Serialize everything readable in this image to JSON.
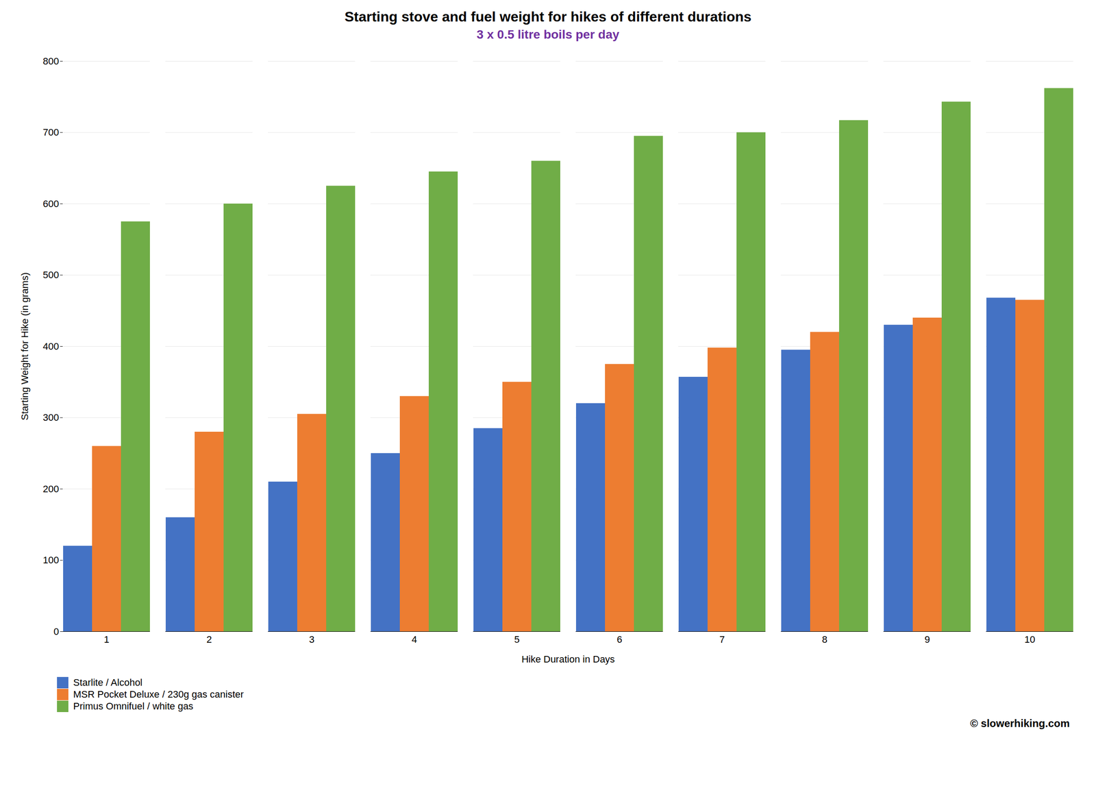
{
  "chart_data": {
    "type": "bar",
    "title": "Starting stove and fuel weight for hikes of different durations",
    "subtitle": "3 x 0.5 litre boils per day",
    "annotations": [
      "© slowerhiking.com"
    ],
    "xlabel": "Hike Duration in Days",
    "ylabel": "Starting Weight for Hike (in grams)",
    "categories": [
      "1",
      "2",
      "3",
      "4",
      "5",
      "6",
      "7",
      "8",
      "9",
      "10"
    ],
    "series": [
      {
        "name": "Starlite / Alcohol",
        "color": "#4472C4",
        "values": [
          120,
          160,
          210,
          250,
          285,
          320,
          357,
          395,
          430,
          468
        ]
      },
      {
        "name": "MSR Pocket Deluxe / 230g gas canister",
        "color": "#ED7D31",
        "values": [
          260,
          280,
          305,
          330,
          350,
          375,
          398,
          420,
          440,
          465
        ]
      },
      {
        "name": "Primus Omnifuel / white gas",
        "color": "#70AD47",
        "values": [
          575,
          600,
          625,
          645,
          660,
          695,
          700,
          717,
          743,
          762
        ]
      }
    ],
    "ylim": [
      0,
      800
    ],
    "yticks": [
      0,
      100,
      200,
      300,
      400,
      500,
      600,
      700,
      800
    ],
    "grid": true,
    "legend": "bottom"
  }
}
